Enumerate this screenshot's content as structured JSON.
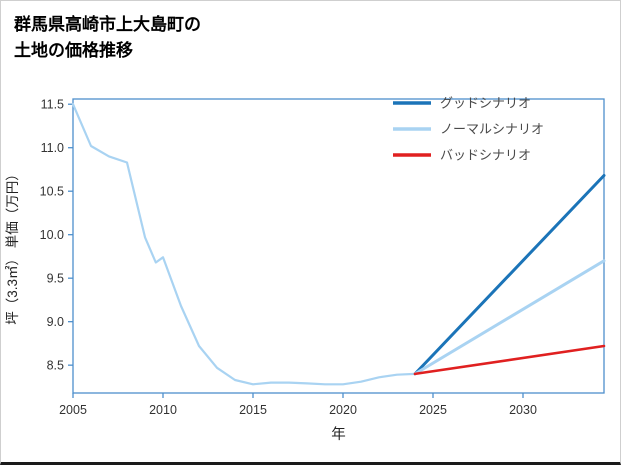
{
  "page": {
    "title_line1": "群馬県高崎市上大島町の",
    "title_line2": "土地の価格推移"
  },
  "chart_data": {
    "type": "line",
    "title": "群馬県高崎市上大島町の土地の価格推移",
    "xlabel": "年",
    "ylabel": "坪（3.3㎡） 単価（万円）",
    "xlim": [
      2005,
      2034.5
    ],
    "ylim": [
      8.18,
      11.56
    ],
    "xticks": [
      2005,
      2010,
      2015,
      2020,
      2025,
      2030
    ],
    "xtick_labels": [
      "2005",
      "2010",
      "2015",
      "2020",
      "2025",
      "2030"
    ],
    "yticks": [
      8.5,
      9.0,
      9.5,
      10.0,
      10.5,
      11.0,
      11.5
    ],
    "ytick_labels": [
      "8.5",
      "9.0",
      "9.5",
      "10.0",
      "10.5",
      "11.0",
      "11.5"
    ],
    "grid": false,
    "legend_position": "upper-right",
    "colors": {
      "axis": "#4d8fcc",
      "tick_label": "#333333",
      "axis_label": "#222222",
      "legend_text": "#4a4a4a",
      "good": "#1b74b8",
      "normal": "#a9d3f2",
      "bad": "#e02020"
    },
    "series": [
      {
        "id": "history",
        "color": "#a9d3f2",
        "width": 2.2,
        "x": [
          2005,
          2006,
          2007,
          2008,
          2009,
          2009.6,
          2010,
          2011,
          2012,
          2013,
          2014,
          2015,
          2016,
          2017,
          2018,
          2019,
          2020,
          2021,
          2022,
          2023,
          2024
        ],
        "y": [
          11.5,
          11.02,
          10.9,
          10.83,
          9.97,
          9.68,
          9.74,
          9.18,
          8.72,
          8.47,
          8.33,
          8.28,
          8.3,
          8.3,
          8.29,
          8.28,
          8.28,
          8.31,
          8.36,
          8.39,
          8.4
        ]
      },
      {
        "id": "good-scenario",
        "name": "グッドシナリオ",
        "color": "#1b74b8",
        "width": 3,
        "x": [
          2024,
          2034.5
        ],
        "y": [
          8.4,
          10.68
        ]
      },
      {
        "id": "normal-scenario",
        "name": "ノーマルシナリオ",
        "color": "#a9d3f2",
        "width": 3,
        "x": [
          2024,
          2034.5
        ],
        "y": [
          8.4,
          9.7
        ]
      },
      {
        "id": "bad-scenario",
        "name": "バッドシナリオ",
        "color": "#e02020",
        "width": 2.6,
        "x": [
          2024,
          2034.5
        ],
        "y": [
          8.4,
          8.72
        ]
      }
    ],
    "legend": [
      {
        "id": "good-scenario",
        "label": "グッドシナリオ",
        "color": "#1b74b8"
      },
      {
        "id": "normal-scenario",
        "label": "ノーマルシナリオ",
        "color": "#a9d3f2"
      },
      {
        "id": "bad-scenario",
        "label": "バッドシナリオ",
        "color": "#e02020"
      }
    ]
  }
}
